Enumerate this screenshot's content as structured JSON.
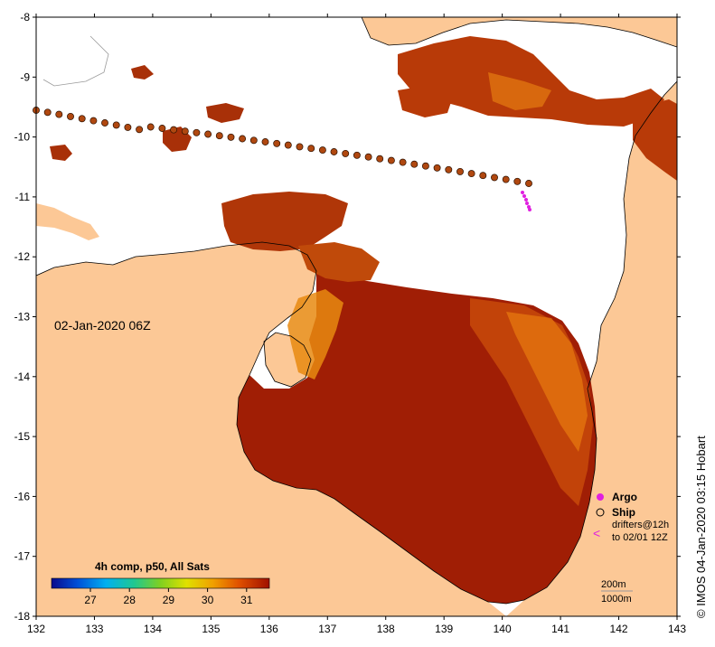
{
  "map": {
    "timestamp_label": "02-Jan-2020 06Z",
    "credit": "© IMOS 04-Jan-2020 03:15 Hobart",
    "x_ticks": [
      "132",
      "133",
      "134",
      "135",
      "136",
      "137",
      "138",
      "139",
      "140",
      "141",
      "142",
      "143"
    ],
    "y_ticks": [
      "-8",
      "-9",
      "-10",
      "-11",
      "-12",
      "-13",
      "-14",
      "-15",
      "-16",
      "-17",
      "-18"
    ],
    "colorbar": {
      "title": "4h comp, p50, All Sats",
      "ticks": [
        "27",
        "28",
        "29",
        "30",
        "31"
      ]
    },
    "legend": {
      "argo": "Argo",
      "ship": "Ship",
      "drifters_line1": "drifters@12h",
      "drifters_line2": "to 02/01 12Z",
      "contour_200": "200m",
      "contour_1000": "1000m"
    },
    "colors": {
      "land": "#fcc896",
      "sst_hot": "#a01e05",
      "sst_warm": "#c84a0a",
      "sst_mid": "#e87a10",
      "argo": "#e020e0",
      "ship_track": "#b04810"
    }
  }
}
